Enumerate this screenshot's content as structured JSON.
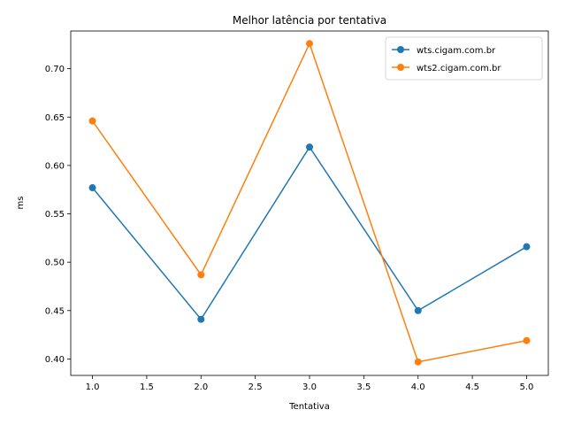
{
  "chart_data": {
    "type": "line",
    "title": "Melhor latência por tentativa",
    "xlabel": "Tentativa",
    "ylabel": "ms",
    "xlim": [
      0.8,
      5.2
    ],
    "ylim": [
      0.383,
      0.739
    ],
    "xticks": [
      1.0,
      1.5,
      2.0,
      2.5,
      3.0,
      3.5,
      4.0,
      4.5,
      5.0
    ],
    "xtick_labels": [
      "1.0",
      "1.5",
      "2.0",
      "2.5",
      "3.0",
      "3.5",
      "4.0",
      "4.5",
      "5.0"
    ],
    "yticks": [
      0.4,
      0.45,
      0.5,
      0.55,
      0.6,
      0.65,
      0.7
    ],
    "ytick_labels": [
      "0.40",
      "0.45",
      "0.50",
      "0.55",
      "0.60",
      "0.65",
      "0.70"
    ],
    "grid": false,
    "legend_position": "top-right",
    "x": [
      1,
      2,
      3,
      4,
      5
    ],
    "series": [
      {
        "name": "wts.cigam.com.br",
        "color": "#1f77b4",
        "values": [
          0.577,
          0.441,
          0.619,
          0.45,
          0.516
        ]
      },
      {
        "name": "wts2.cigam.com.br",
        "color": "#ff7f0e",
        "values": [
          0.646,
          0.487,
          0.726,
          0.397,
          0.419
        ]
      }
    ]
  }
}
